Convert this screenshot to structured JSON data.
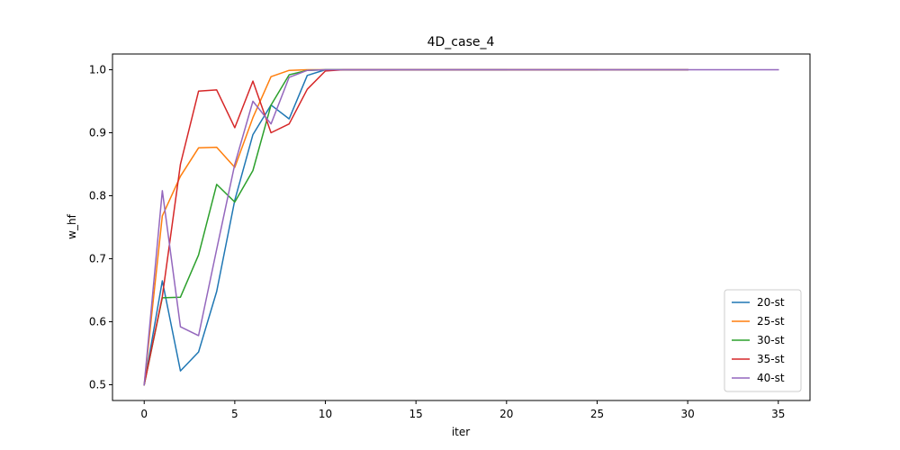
{
  "chart_data": {
    "type": "line",
    "title": "4D_case_4",
    "xlabel": "iter",
    "ylabel": "w_hf",
    "xlim": [
      -1.75,
      36.75
    ],
    "ylim": [
      0.475,
      1.025
    ],
    "xticks": [
      0,
      5,
      10,
      15,
      20,
      25,
      30,
      35
    ],
    "yticks": [
      0.5,
      0.6,
      0.7,
      0.8,
      0.9,
      1.0
    ],
    "ytick_labels": [
      "0.5",
      "0.6",
      "0.7",
      "0.8",
      "0.9",
      "1.0"
    ],
    "grid": false,
    "legend_position": "lower-right",
    "series": [
      {
        "name": "20-st",
        "color": "#1f77b4",
        "x": [
          0,
          1,
          2,
          3,
          4,
          5,
          6,
          7,
          8,
          9,
          10,
          11,
          12,
          13,
          14,
          15,
          16,
          17,
          18,
          19,
          20
        ],
        "y": [
          0.5,
          0.665,
          0.522,
          0.552,
          0.648,
          0.793,
          0.897,
          0.944,
          0.922,
          0.991,
          1.0,
          1.0,
          1.0,
          1.0,
          1.0,
          1.0,
          1.0,
          1.0,
          1.0,
          1.0,
          1.0
        ]
      },
      {
        "name": "25-st",
        "color": "#ff7f0e",
        "x": [
          0,
          1,
          2,
          3,
          4,
          5,
          6,
          7,
          8,
          9,
          10,
          11,
          12,
          13,
          14,
          15,
          16,
          17,
          18,
          19,
          20,
          21,
          22,
          23,
          24,
          25
        ],
        "y": [
          0.5,
          0.768,
          0.831,
          0.876,
          0.877,
          0.845,
          0.924,
          0.989,
          0.999,
          1.0,
          1.0,
          1.0,
          1.0,
          1.0,
          1.0,
          1.0,
          1.0,
          1.0,
          1.0,
          1.0,
          1.0,
          1.0,
          1.0,
          1.0,
          1.0,
          1.0
        ]
      },
      {
        "name": "30-st",
        "color": "#2ca02c",
        "x": [
          0,
          1,
          2,
          3,
          4,
          5,
          6,
          7,
          8,
          9,
          10,
          11,
          12,
          13,
          14,
          15,
          16,
          17,
          18,
          19,
          20,
          21,
          22,
          23,
          24,
          25,
          26,
          27,
          28,
          29,
          30
        ],
        "y": [
          0.5,
          0.638,
          0.639,
          0.706,
          0.818,
          0.79,
          0.84,
          0.944,
          0.992,
          0.999,
          1.0,
          1.0,
          1.0,
          1.0,
          1.0,
          1.0,
          1.0,
          1.0,
          1.0,
          1.0,
          1.0,
          1.0,
          1.0,
          1.0,
          1.0,
          1.0,
          1.0,
          1.0,
          1.0,
          1.0,
          1.0
        ]
      },
      {
        "name": "35-st",
        "color": "#d62728",
        "x": [
          0,
          1,
          2,
          3,
          4,
          5,
          6,
          7,
          8,
          9,
          10,
          11,
          12,
          13,
          14,
          15,
          16,
          17,
          18,
          19,
          20,
          21,
          22,
          23,
          24,
          25,
          26,
          27,
          28,
          29,
          30
        ],
        "y": [
          0.5,
          0.64,
          0.85,
          0.966,
          0.968,
          0.908,
          0.982,
          0.9,
          0.914,
          0.969,
          0.998,
          1.0,
          1.0,
          1.0,
          1.0,
          1.0,
          1.0,
          1.0,
          1.0,
          1.0,
          1.0,
          1.0,
          1.0,
          1.0,
          1.0,
          1.0,
          1.0,
          1.0,
          1.0,
          1.0,
          1.0
        ]
      },
      {
        "name": "40-st",
        "color": "#9467bd",
        "x": [
          0,
          1,
          2,
          3,
          4,
          5,
          6,
          7,
          8,
          9,
          10,
          11,
          12,
          13,
          14,
          15,
          16,
          17,
          18,
          19,
          20,
          21,
          22,
          23,
          24,
          25,
          26,
          27,
          28,
          29,
          30,
          31,
          32,
          33,
          34,
          35
        ],
        "y": [
          0.5,
          0.808,
          0.592,
          0.578,
          0.715,
          0.85,
          0.95,
          0.914,
          0.988,
          0.999,
          1.0,
          1.0,
          1.0,
          1.0,
          1.0,
          1.0,
          1.0,
          1.0,
          1.0,
          1.0,
          1.0,
          1.0,
          1.0,
          1.0,
          1.0,
          1.0,
          1.0,
          1.0,
          1.0,
          1.0,
          1.0,
          1.0,
          1.0,
          1.0,
          1.0,
          1.0
        ]
      }
    ]
  }
}
